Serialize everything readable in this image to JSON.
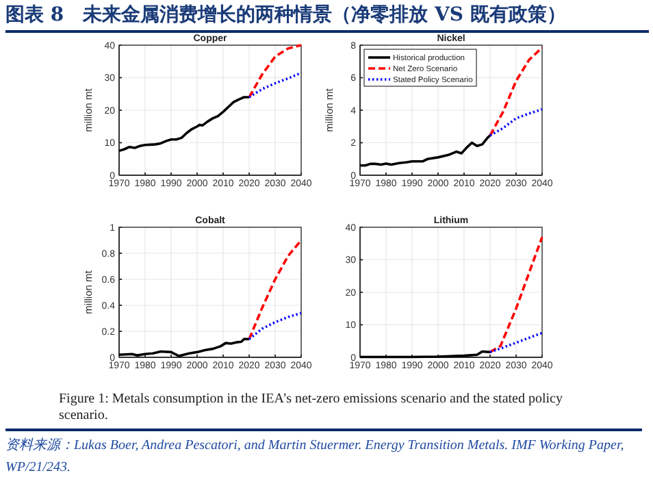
{
  "chart_data": [
    {
      "type": "line",
      "title": "Copper",
      "ylabel": "million mt",
      "xlim": [
        1970,
        2040
      ],
      "xticks": [
        1970,
        1980,
        1990,
        2000,
        2010,
        2020,
        2030,
        2040
      ],
      "ylim": [
        0,
        40
      ],
      "yticks": [
        0,
        10,
        20,
        30,
        40
      ],
      "grid": true,
      "legend": false,
      "annotations": [
        "图表 8　未来金属消费增长的两种情景（净零排放 VS 既有政策）"
      ],
      "series": [
        {
          "color": "#000000",
          "line_style": "solid",
          "x": [
            1970,
            1972,
            1974,
            1976,
            1978,
            1980,
            1982,
            1984,
            1986,
            1988,
            1990,
            1992,
            1994,
            1996,
            1998,
            2000,
            2001,
            2002,
            2004,
            2006,
            2008,
            2010,
            2012,
            2014,
            2016,
            2018,
            2020
          ],
          "values": [
            7.5,
            8,
            8.7,
            8.4,
            9,
            9.3,
            9.4,
            9.5,
            9.8,
            10.5,
            11,
            11,
            11.5,
            13,
            14.2,
            15,
            15.5,
            15.3,
            16.5,
            17.5,
            18.2,
            19.5,
            21,
            22.5,
            23.3,
            24,
            24
          ]
        },
        {
          "color": "#ff0000",
          "line_style": "dashed",
          "x": [
            2020,
            2025,
            2030,
            2035,
            2040
          ],
          "values": [
            24,
            31,
            36.5,
            39,
            40
          ]
        },
        {
          "color": "#0000ff",
          "line_style": "dotted",
          "x": [
            2020,
            2025,
            2030,
            2035,
            2040
          ],
          "values": [
            24,
            26.5,
            28.3,
            29.8,
            31.5
          ]
        }
      ]
    },
    {
      "type": "line",
      "title": "Nickel",
      "ylabel": "million mt",
      "xlim": [
        1970,
        2040
      ],
      "xticks": [
        1970,
        1980,
        1990,
        2000,
        2010,
        2020,
        2030,
        2040
      ],
      "ylim": [
        0,
        8
      ],
      "yticks": [
        0,
        2,
        4,
        6,
        8
      ],
      "grid": true,
      "legend": "top left",
      "series": [
        {
          "name": "Historical production",
          "color": "#000000",
          "line_style": "solid",
          "x": [
            1970,
            1972,
            1974,
            1976,
            1978,
            1980,
            1982,
            1985,
            1988,
            1990,
            1994,
            1996,
            2000,
            2004,
            2007,
            2009,
            2011,
            2013,
            2015,
            2017,
            2019,
            2020
          ],
          "values": [
            0.6,
            0.6,
            0.7,
            0.7,
            0.65,
            0.72,
            0.65,
            0.75,
            0.8,
            0.85,
            0.85,
            1.0,
            1.1,
            1.25,
            1.45,
            1.35,
            1.7,
            2.0,
            1.8,
            1.9,
            2.3,
            2.45
          ]
        },
        {
          "name": "Net Zero Scenario",
          "color": "#ff0000",
          "line_style": "dashed",
          "x": [
            2020,
            2025,
            2030,
            2035,
            2040
          ],
          "values": [
            2.45,
            3.9,
            5.8,
            7.1,
            7.85
          ]
        },
        {
          "name": "Stated Policy Scenario",
          "color": "#0000ff",
          "line_style": "dotted",
          "x": [
            2020,
            2025,
            2030,
            2035,
            2040
          ],
          "values": [
            2.45,
            2.9,
            3.5,
            3.8,
            4.05
          ]
        }
      ]
    },
    {
      "type": "line",
      "title": "Cobalt",
      "ylabel": "million mt",
      "xlim": [
        1970,
        2040
      ],
      "xticks": [
        1970,
        1980,
        1990,
        2000,
        2010,
        2020,
        2030,
        2040
      ],
      "ylim": [
        0,
        1
      ],
      "yticks": [
        0,
        0.2,
        0.4,
        0.6,
        0.8,
        1
      ],
      "grid": true,
      "legend": false,
      "series": [
        {
          "color": "#000000",
          "line_style": "solid",
          "x": [
            1970,
            1975,
            1977,
            1980,
            1983,
            1986,
            1990,
            1993,
            1997,
            2000,
            2003,
            2006,
            2009,
            2011,
            2013,
            2015,
            2017,
            2018,
            2020
          ],
          "values": [
            0.02,
            0.025,
            0.015,
            0.025,
            0.03,
            0.045,
            0.04,
            0.01,
            0.03,
            0.04,
            0.055,
            0.065,
            0.085,
            0.11,
            0.105,
            0.115,
            0.12,
            0.14,
            0.14
          ]
        },
        {
          "color": "#ff0000",
          "line_style": "dashed",
          "x": [
            2020,
            2025,
            2030,
            2035,
            2040
          ],
          "values": [
            0.14,
            0.38,
            0.6,
            0.78,
            0.9
          ]
        },
        {
          "color": "#0000ff",
          "line_style": "dotted",
          "x": [
            2020,
            2025,
            2030,
            2035,
            2040
          ],
          "values": [
            0.14,
            0.22,
            0.27,
            0.31,
            0.34
          ]
        }
      ]
    },
    {
      "type": "line",
      "title": "Lithium",
      "xlim": [
        1970,
        2040
      ],
      "xticks": [
        1970,
        1980,
        1990,
        2000,
        2010,
        2020,
        2030,
        2040
      ],
      "ylim": [
        0,
        40
      ],
      "yticks": [
        0,
        10,
        20,
        30,
        40
      ],
      "grid": true,
      "legend": false,
      "annotations": [
        "Figure 1: Metals consumption in the IEA’s net-zero emissions scenario and the stated policy scenario.",
        "资料来源：Lukas Boer, Andrea Pescatori, and Martin Stuermer. Energy Transition Metals. IMF Working Paper, WP/21/243."
      ],
      "series": [
        {
          "color": "#000000",
          "line_style": "solid",
          "x": [
            1970,
            1990,
            2000,
            2010,
            2015,
            2017,
            2020
          ],
          "values": [
            0.1,
            0.1,
            0.2,
            0.5,
            0.8,
            1.8,
            1.6
          ]
        },
        {
          "color": "#ff0000",
          "line_style": "dashed",
          "x": [
            2020,
            2024,
            2030,
            2035,
            2040
          ],
          "values": [
            1.6,
            3.5,
            15,
            26,
            37
          ]
        },
        {
          "color": "#0000ff",
          "line_style": "dotted",
          "x": [
            2020,
            2025,
            2030,
            2035,
            2040
          ],
          "values": [
            1.6,
            3,
            4.5,
            6,
            7.5
          ]
        }
      ]
    }
  ]
}
